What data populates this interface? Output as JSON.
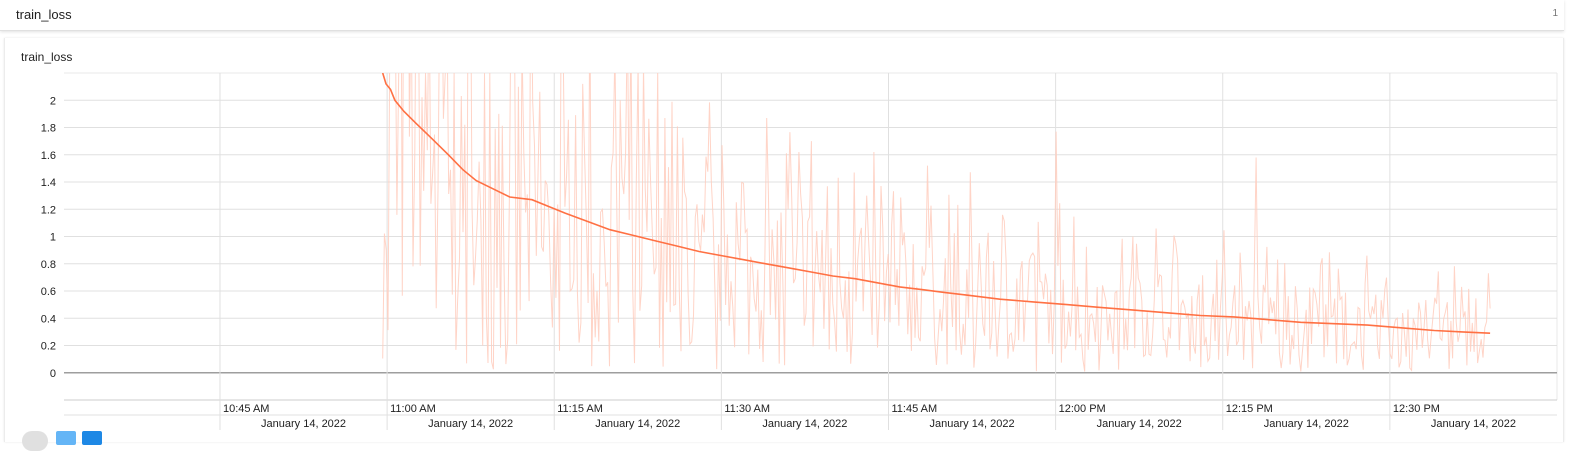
{
  "header": {
    "title": "train_loss",
    "count": "1"
  },
  "chart_data": {
    "type": "line",
    "title": "train_loss",
    "xlabel": "",
    "ylabel": "",
    "x_domain_minutes": [
      -14,
      120
    ],
    "ylim": [
      -0.2,
      2.2
    ],
    "y_ticks": [
      0,
      0.2,
      0.4,
      0.6,
      0.8,
      1,
      1.2,
      1.4,
      1.6,
      1.8,
      2
    ],
    "x_ticks": [
      {
        "minutes": 0,
        "time": "10:45 AM",
        "date": "January 14, 2022"
      },
      {
        "minutes": 15,
        "time": "11:00 AM",
        "date": "January 14, 2022"
      },
      {
        "minutes": 30,
        "time": "11:15 AM",
        "date": "January 14, 2022"
      },
      {
        "minutes": 45,
        "time": "11:30 AM",
        "date": "January 14, 2022"
      },
      {
        "minutes": 60,
        "time": "11:45 AM",
        "date": "January 14, 2022"
      },
      {
        "minutes": 75,
        "time": "12:00 PM",
        "date": "January 14, 2022"
      },
      {
        "minutes": 90,
        "time": "12:15 PM",
        "date": "January 14, 2022"
      },
      {
        "minutes": 105,
        "time": "12:30 PM",
        "date": "January 14, 2022"
      }
    ],
    "grid": true,
    "series": [
      {
        "role": "smoothed",
        "color": "#ff7043",
        "x": [
          14.6,
          14.9,
          15.3,
          15.7,
          16.5,
          17.6,
          19.0,
          20.5,
          21.8,
          23.0,
          24.5,
          26.0,
          28.0,
          29.5,
          31.0,
          33.0,
          35.0,
          37.0,
          39.0,
          41.0,
          43.0,
          45.0,
          47.0,
          49.0,
          51.0,
          53.0,
          55.0,
          57.0,
          59.0,
          61.0,
          63.0,
          65.0,
          67.0,
          70.0,
          73.0,
          76.0,
          79.0,
          82.0,
          85.0,
          88.0,
          91.0,
          94.0,
          97.0,
          100.0,
          103.0,
          106.0,
          109.0,
          111.5,
          114.0
        ],
        "values": [
          2.2,
          2.12,
          2.08,
          2.0,
          1.92,
          1.83,
          1.72,
          1.6,
          1.49,
          1.41,
          1.35,
          1.29,
          1.27,
          1.22,
          1.17,
          1.11,
          1.05,
          1.01,
          0.97,
          0.93,
          0.89,
          0.86,
          0.83,
          0.8,
          0.77,
          0.74,
          0.71,
          0.69,
          0.66,
          0.63,
          0.61,
          0.59,
          0.57,
          0.54,
          0.52,
          0.5,
          0.48,
          0.46,
          0.44,
          0.42,
          0.41,
          0.39,
          0.37,
          0.36,
          0.35,
          0.33,
          0.31,
          0.3,
          0.29
        ]
      },
      {
        "role": "raw",
        "color": "#ffcdbd",
        "x_start": 14.6,
        "x_end": 114.0,
        "peaks": [
          {
            "x": 15.0,
            "value": 0.9
          },
          {
            "x": 16.0,
            "value": 2.2
          },
          {
            "x": 18.5,
            "value": 2.2
          },
          {
            "x": 21.0,
            "value": 2.2
          },
          {
            "x": 23.5,
            "value": 0.2
          },
          {
            "x": 25.0,
            "value": 1.9
          },
          {
            "x": 26.5,
            "value": 2.2
          },
          {
            "x": 30.0,
            "value": 1.2
          },
          {
            "x": 32.5,
            "value": 2.12
          },
          {
            "x": 36.0,
            "value": 2.0
          },
          {
            "x": 40.0,
            "value": 1.87
          },
          {
            "x": 45.0,
            "value": 1.67
          },
          {
            "x": 49.0,
            "value": 1.87
          },
          {
            "x": 52.0,
            "value": 1.62
          },
          {
            "x": 57.0,
            "value": 1.47
          },
          {
            "x": 59.5,
            "value": 1.06
          },
          {
            "x": 75.0,
            "value": 1.77
          },
          {
            "x": 82.0,
            "value": 1.0
          },
          {
            "x": 86.0,
            "value": 0.83
          },
          {
            "x": 93.0,
            "value": 1.58
          },
          {
            "x": 99.0,
            "value": 0.84
          },
          {
            "x": 103.0,
            "value": 0.86
          },
          {
            "x": 109.0,
            "value": 0.55
          },
          {
            "x": 113.9,
            "value": 0.73
          }
        ]
      }
    ]
  }
}
